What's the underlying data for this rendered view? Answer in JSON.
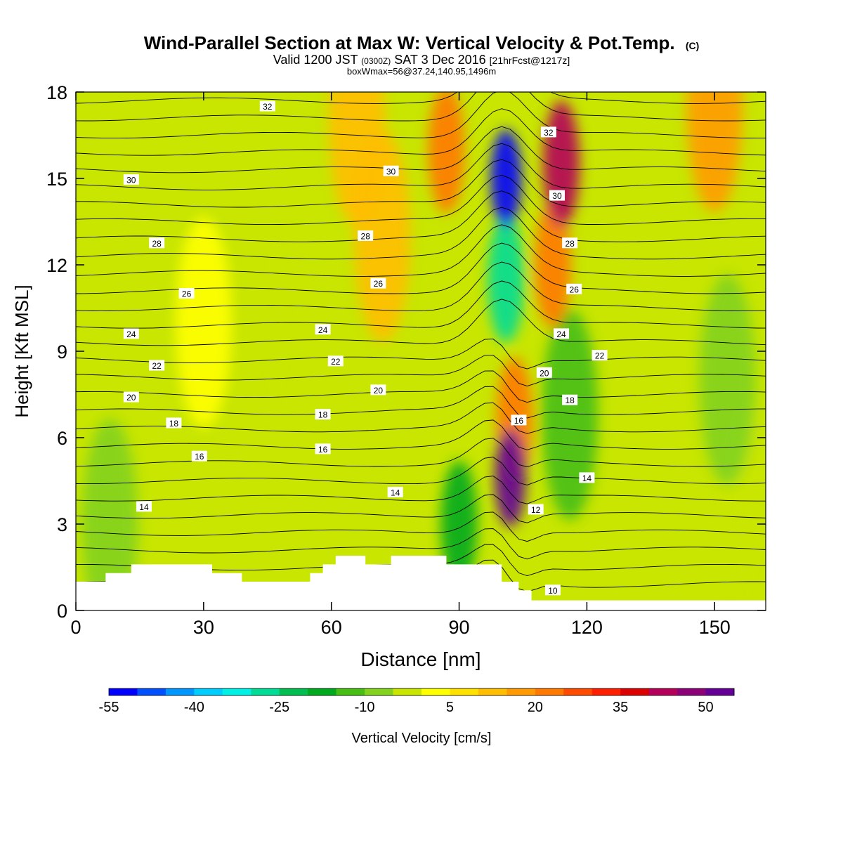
{
  "title": {
    "main": "Wind-Parallel Section at Max W: Vertical Velocity & Pot.Temp.",
    "copyright": "(C)",
    "valid_prefix": "Valid 1200 JST",
    "valid_z": "(0300Z)",
    "valid_date": "SAT 3 Dec 2016",
    "valid_fcst": "[21hrFcst@1217z]",
    "subtitle": "boxWmax=56@37.24,140.95,1496m"
  },
  "chart_data": {
    "type": "heatmap",
    "xlabel": "Distance [nm]",
    "ylabel": "Height [Kft MSL]",
    "xlim": [
      0,
      162
    ],
    "ylim": [
      0,
      18
    ],
    "xticks": [
      0,
      30,
      60,
      90,
      120,
      150
    ],
    "yticks": [
      0,
      3,
      6,
      9,
      12,
      15,
      18
    ],
    "colorbar": {
      "label": "Vertical Velocity [cm/s]",
      "tick_labels": [
        "-55",
        "-40",
        "-25",
        "-10",
        "5",
        "20",
        "35",
        "50"
      ],
      "bins": [
        -55,
        -50,
        -45,
        -40,
        -35,
        -30,
        -25,
        -20,
        -15,
        -10,
        -5,
        0,
        5,
        10,
        15,
        20,
        25,
        30,
        35,
        40,
        45,
        50,
        55
      ],
      "colors": [
        "#0000ff",
        "#0050ff",
        "#0096ff",
        "#00cdff",
        "#00f0e6",
        "#00dc96",
        "#00be50",
        "#00aa1e",
        "#46be14",
        "#82d21e",
        "#c8e600",
        "#ffff00",
        "#ffe100",
        "#ffbe00",
        "#ff9b00",
        "#ff7800",
        "#ff4b00",
        "#ff1e00",
        "#dc0000",
        "#b4005a",
        "#8c0078",
        "#640096"
      ]
    },
    "vertical_velocity_features": [
      {
        "x": 30,
        "y": 10,
        "value": 3
      },
      {
        "x": 66,
        "y": 17,
        "value": 12
      },
      {
        "x": 87,
        "y": 16,
        "value": 20
      },
      {
        "x": 101,
        "y": 15,
        "value": -55
      },
      {
        "x": 101,
        "y": 11.5,
        "value": -30
      },
      {
        "x": 114,
        "y": 15.5,
        "value": 40
      },
      {
        "x": 112,
        "y": 12,
        "value": 20
      },
      {
        "x": 102,
        "y": 4.6,
        "value": 56
      },
      {
        "x": 103,
        "y": 6.6,
        "value": 20
      },
      {
        "x": 90,
        "y": 3,
        "value": -18
      },
      {
        "x": 116,
        "y": 6.8,
        "value": -15
      },
      {
        "x": 8,
        "y": 3,
        "value": -6
      },
      {
        "x": 153,
        "y": 8,
        "value": -6
      },
      {
        "x": 158,
        "y": 3.5,
        "value": -5
      },
      {
        "x": 150,
        "y": 17.5,
        "value": 15
      },
      {
        "x": 72,
        "y": 13,
        "value": 10
      },
      {
        "x": 47,
        "y": 10,
        "value": -4
      }
    ],
    "theta_contour_labels": [
      {
        "label": "32",
        "x": 45,
        "y": 17.5
      },
      {
        "label": "32",
        "x": 111,
        "y": 16.6
      },
      {
        "label": "30",
        "x": 13,
        "y": 14.95
      },
      {
        "label": "30",
        "x": 74,
        "y": 15.25
      },
      {
        "label": "30",
        "x": 113,
        "y": 14.4
      },
      {
        "label": "28",
        "x": 19,
        "y": 12.75
      },
      {
        "label": "28",
        "x": 68,
        "y": 13.0
      },
      {
        "label": "28",
        "x": 116,
        "y": 12.75
      },
      {
        "label": "26",
        "x": 26,
        "y": 11.0
      },
      {
        "label": "26",
        "x": 71,
        "y": 11.35
      },
      {
        "label": "26",
        "x": 117,
        "y": 11.15
      },
      {
        "label": "24",
        "x": 13,
        "y": 9.6
      },
      {
        "label": "24",
        "x": 58,
        "y": 9.75
      },
      {
        "label": "24",
        "x": 114,
        "y": 9.6
      },
      {
        "label": "22",
        "x": 19,
        "y": 8.5
      },
      {
        "label": "22",
        "x": 61,
        "y": 8.65
      },
      {
        "label": "22",
        "x": 123,
        "y": 8.85
      },
      {
        "label": "20",
        "x": 13,
        "y": 7.4
      },
      {
        "label": "20",
        "x": 71,
        "y": 7.65
      },
      {
        "label": "20",
        "x": 110,
        "y": 8.25
      },
      {
        "label": "18",
        "x": 23,
        "y": 6.5
      },
      {
        "label": "18",
        "x": 58,
        "y": 6.8
      },
      {
        "label": "18",
        "x": 116,
        "y": 7.3
      },
      {
        "label": "16",
        "x": 29,
        "y": 5.35
      },
      {
        "label": "16",
        "x": 58,
        "y": 5.6
      },
      {
        "label": "16",
        "x": 104,
        "y": 6.6
      },
      {
        "label": "14",
        "x": 16,
        "y": 3.6
      },
      {
        "label": "14",
        "x": 75,
        "y": 4.1
      },
      {
        "label": "14",
        "x": 120,
        "y": 4.6
      },
      {
        "label": "12",
        "x": 108,
        "y": 3.5
      },
      {
        "label": "10",
        "x": 112,
        "y": 0.7
      }
    ]
  }
}
